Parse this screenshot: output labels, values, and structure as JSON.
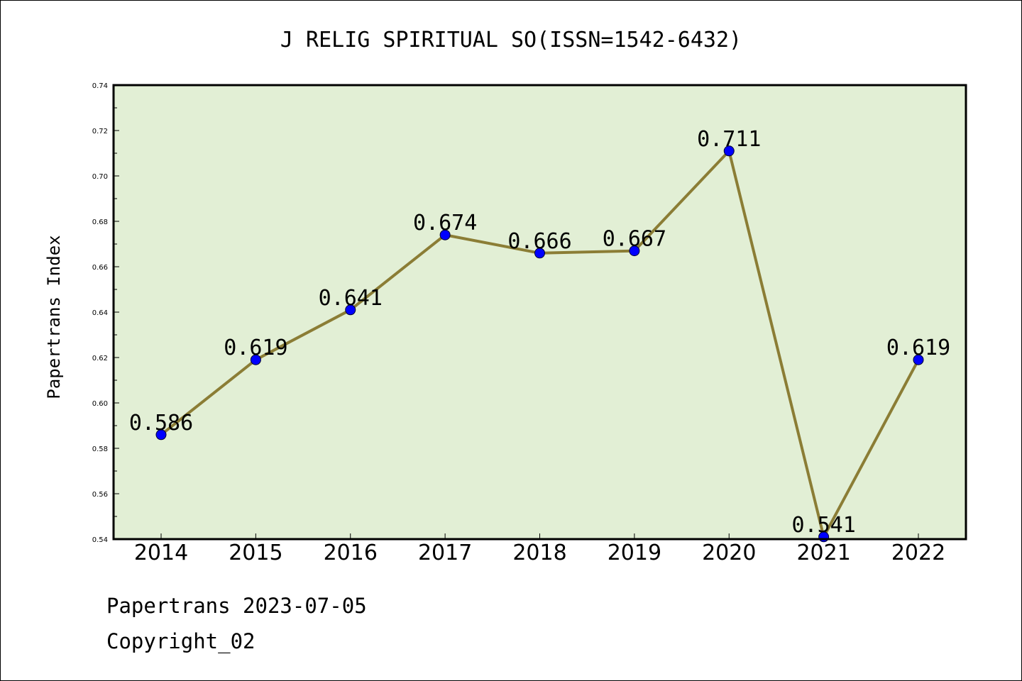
{
  "chart_data": {
    "type": "line",
    "title": "J RELIG SPIRITUAL SO(ISSN=1542-6432)",
    "ylabel": "Papertrans Index",
    "xlabel": "",
    "categories": [
      "2014",
      "2015",
      "2016",
      "2017",
      "2018",
      "2019",
      "2020",
      "2021",
      "2022"
    ],
    "values": [
      0.586,
      0.619,
      0.641,
      0.674,
      0.666,
      0.667,
      0.711,
      0.541,
      0.619
    ],
    "data_labels": [
      "0.586",
      "0.619",
      "0.641",
      "0.674",
      "0.666",
      "0.667",
      "0.711",
      "0.541",
      "0.619"
    ],
    "ylim": [
      0.54,
      0.74
    ],
    "yticks": [
      "0.54",
      "0.56",
      "0.58",
      "0.60",
      "0.62",
      "0.64",
      "0.66",
      "0.68",
      "0.70",
      "0.72",
      "0.74"
    ],
    "grid": false,
    "colors": {
      "plot_background": "#e2efd5",
      "line": "#8b7d35",
      "marker": "#0000ff",
      "axes": "#000000"
    }
  },
  "footer": {
    "line1": "Papertrans 2023-07-05",
    "line2": "Copyright_02"
  }
}
